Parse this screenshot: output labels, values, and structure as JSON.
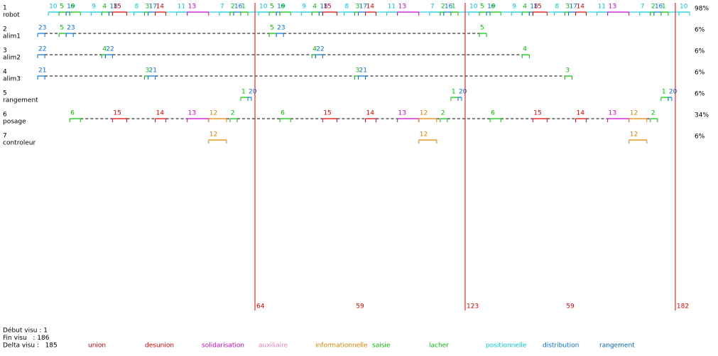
{
  "chart_data": {
    "type": "timeline",
    "xlim": [
      1,
      186
    ],
    "rows": [
      {
        "id": "1",
        "name": "robot",
        "percent": "98%",
        "connector": "solid",
        "connector_color": "#00c8d8",
        "segments": [
          {
            "label": "10",
            "color": "#00c8d8",
            "t": [
              6,
              9
            ]
          },
          {
            "label": "5",
            "color": "#00c000",
            "t": [
              9,
              11
            ]
          },
          {
            "label": "19",
            "color": "#0070e0",
            "t": [
              11,
              12
            ]
          },
          {
            "label": "6",
            "color": "#00c000",
            "t": [
              12,
              15
            ]
          },
          {
            "label": "9",
            "color": "#00c8d8",
            "t": [
              18,
              21
            ]
          },
          {
            "label": "4",
            "color": "#00c000",
            "t": [
              21,
              23
            ]
          },
          {
            "label": "18",
            "color": "#0070e0",
            "t": [
              23,
              24
            ]
          },
          {
            "label": "15",
            "color": "#e00000",
            "t": [
              24,
              28
            ]
          },
          {
            "label": "8",
            "color": "#00c8d8",
            "t": [
              30,
              33
            ]
          },
          {
            "label": "3",
            "color": "#00c000",
            "t": [
              33,
              34
            ]
          },
          {
            "label": "17",
            "color": "#0070e0",
            "t": [
              34,
              36
            ]
          },
          {
            "label": "14",
            "color": "#e00000",
            "t": [
              36,
              39
            ]
          },
          {
            "label": "11",
            "color": "#00c8d8",
            "t": [
              42,
              45
            ]
          },
          {
            "label": "13",
            "color": "#d000d0",
            "t": [
              45,
              51
            ]
          },
          {
            "label": "7",
            "color": "#00c8d8",
            "t": [
              54,
              57
            ]
          },
          {
            "label": "2",
            "color": "#00c000",
            "t": [
              57,
              58
            ]
          },
          {
            "label": "16",
            "color": "#0070e0",
            "t": [
              58,
              60
            ]
          },
          {
            "label": "1",
            "color": "#00c000",
            "t": [
              60,
              62
            ]
          },
          {
            "label": "10",
            "color": "#00c8d8",
            "t": [
              65,
              68
            ]
          },
          {
            "label": "5",
            "color": "#00c000",
            "t": [
              68,
              70
            ]
          },
          {
            "label": "19",
            "color": "#0070e0",
            "t": [
              70,
              71
            ]
          },
          {
            "label": "6",
            "color": "#00c000",
            "t": [
              71,
              74
            ]
          },
          {
            "label": "9",
            "color": "#00c8d8",
            "t": [
              77,
              80
            ]
          },
          {
            "label": "4",
            "color": "#00c000",
            "t": [
              80,
              82
            ]
          },
          {
            "label": "18",
            "color": "#0070e0",
            "t": [
              82,
              83
            ]
          },
          {
            "label": "15",
            "color": "#e00000",
            "t": [
              83,
              87
            ]
          },
          {
            "label": "8",
            "color": "#00c8d8",
            "t": [
              89,
              92
            ]
          },
          {
            "label": "3",
            "color": "#00c000",
            "t": [
              92,
              93
            ]
          },
          {
            "label": "17",
            "color": "#0070e0",
            "t": [
              93,
              95
            ]
          },
          {
            "label": "14",
            "color": "#e00000",
            "t": [
              95,
              98
            ]
          },
          {
            "label": "11",
            "color": "#00c8d8",
            "t": [
              101,
              104
            ]
          },
          {
            "label": "13",
            "color": "#d000d0",
            "t": [
              104,
              110
            ]
          },
          {
            "label": "7",
            "color": "#00c8d8",
            "t": [
              113,
              116
            ]
          },
          {
            "label": "2",
            "color": "#00c000",
            "t": [
              116,
              117
            ]
          },
          {
            "label": "16",
            "color": "#0070e0",
            "t": [
              117,
              119
            ]
          },
          {
            "label": "1",
            "color": "#00c000",
            "t": [
              119,
              121
            ]
          },
          {
            "label": "10",
            "color": "#00c8d8",
            "t": [
              124,
              127
            ]
          },
          {
            "label": "5",
            "color": "#00c000",
            "t": [
              127,
              129
            ]
          },
          {
            "label": "19",
            "color": "#0070e0",
            "t": [
              129,
              130
            ]
          },
          {
            "label": "6",
            "color": "#00c000",
            "t": [
              130,
              133
            ]
          },
          {
            "label": "9",
            "color": "#00c8d8",
            "t": [
              136,
              139
            ]
          },
          {
            "label": "4",
            "color": "#00c000",
            "t": [
              139,
              141
            ]
          },
          {
            "label": "18",
            "color": "#0070e0",
            "t": [
              141,
              142
            ]
          },
          {
            "label": "15",
            "color": "#e00000",
            "t": [
              142,
              146
            ]
          },
          {
            "label": "8",
            "color": "#00c8d8",
            "t": [
              148,
              151
            ]
          },
          {
            "label": "3",
            "color": "#00c000",
            "t": [
              151,
              152
            ]
          },
          {
            "label": "17",
            "color": "#0070e0",
            "t": [
              152,
              154
            ]
          },
          {
            "label": "14",
            "color": "#e00000",
            "t": [
              154,
              157
            ]
          },
          {
            "label": "11",
            "color": "#00c8d8",
            "t": [
              160,
              163
            ]
          },
          {
            "label": "13",
            "color": "#d000d0",
            "t": [
              163,
              169
            ]
          },
          {
            "label": "7",
            "color": "#00c8d8",
            "t": [
              172,
              175
            ]
          },
          {
            "label": "2",
            "color": "#00c000",
            "t": [
              175,
              176
            ]
          },
          {
            "label": "16",
            "color": "#0070e0",
            "t": [
              176,
              178
            ]
          },
          {
            "label": "1",
            "color": "#00c000",
            "t": [
              178,
              180
            ]
          },
          {
            "label": "10",
            "color": "#00c8d8",
            "t": [
              183,
              186
            ]
          }
        ]
      },
      {
        "id": "2",
        "name": "alim1",
        "percent": "6%",
        "connector": "dashed",
        "segments": [
          {
            "label": "23",
            "color": "#0070e0",
            "t": [
              3,
              5
            ]
          },
          {
            "label": "5",
            "color": "#00c000",
            "t": [
              9,
              11
            ]
          },
          {
            "label": "23",
            "color": "#0070e0",
            "t": [
              11,
              13
            ]
          },
          {
            "label": "5",
            "color": "#00c000",
            "t": [
              68,
              70
            ]
          },
          {
            "label": "23",
            "color": "#0070e0",
            "t": [
              70,
              72
            ]
          },
          {
            "label": "5",
            "color": "#00c000",
            "t": [
              127,
              129
            ]
          }
        ]
      },
      {
        "id": "3",
        "name": "alim2",
        "percent": "6%",
        "connector": "dashed",
        "segments": [
          {
            "label": "22",
            "color": "#0070e0",
            "t": [
              3,
              5
            ]
          },
          {
            "label": "4",
            "color": "#00c000",
            "t": [
              21,
              22
            ]
          },
          {
            "label": "22",
            "color": "#0070e0",
            "t": [
              22,
              24
            ]
          },
          {
            "label": "4",
            "color": "#00c000",
            "t": [
              80,
              81
            ]
          },
          {
            "label": "22",
            "color": "#0070e0",
            "t": [
              81,
              83
            ]
          },
          {
            "label": "4",
            "color": "#00c000",
            "t": [
              139,
              141
            ]
          }
        ]
      },
      {
        "id": "4",
        "name": "alim3",
        "percent": "6%",
        "connector": "dashed",
        "segments": [
          {
            "label": "21",
            "color": "#0070e0",
            "t": [
              3,
              5
            ]
          },
          {
            "label": "3",
            "color": "#00c000",
            "t": [
              33,
              34
            ]
          },
          {
            "label": "21",
            "color": "#0070e0",
            "t": [
              34,
              36
            ]
          },
          {
            "label": "3",
            "color": "#00c000",
            "t": [
              92,
              93
            ]
          },
          {
            "label": "21",
            "color": "#0070e0",
            "t": [
              93,
              95
            ]
          },
          {
            "label": "3",
            "color": "#00c000",
            "t": [
              151,
              153
            ]
          }
        ]
      },
      {
        "id": "5",
        "name": "rangement",
        "percent": "6%",
        "connector": "none",
        "segments": [
          {
            "label": "1",
            "color": "#00c000",
            "t": [
              60,
              62
            ]
          },
          {
            "label": "20",
            "color": "#0070e0",
            "t": [
              62,
              63
            ]
          },
          {
            "label": "1",
            "color": "#00c000",
            "t": [
              119,
              121
            ]
          },
          {
            "label": "20",
            "color": "#0070e0",
            "t": [
              121,
              122
            ]
          },
          {
            "label": "1",
            "color": "#00c000",
            "t": [
              178,
              180
            ]
          },
          {
            "label": "20",
            "color": "#0070e0",
            "t": [
              180,
              181
            ]
          }
        ]
      },
      {
        "id": "6",
        "name": "posage",
        "percent": "34%",
        "connector": "dashed",
        "segments": [
          {
            "label": "6",
            "color": "#00c000",
            "t": [
              12,
              15
            ]
          },
          {
            "label": "15",
            "color": "#e00000",
            "t": [
              24,
              28
            ]
          },
          {
            "label": "14",
            "color": "#e00000",
            "t": [
              36,
              39
            ]
          },
          {
            "label": "13",
            "color": "#d000d0",
            "t": [
              45,
              51
            ]
          },
          {
            "label": "12",
            "color": "#e08000",
            "t": [
              51,
              56
            ]
          },
          {
            "label": "2",
            "color": "#00c000",
            "t": [
              57,
              59
            ]
          },
          {
            "label": "6",
            "color": "#00c000",
            "t": [
              71,
              74
            ]
          },
          {
            "label": "15",
            "color": "#e00000",
            "t": [
              83,
              87
            ]
          },
          {
            "label": "14",
            "color": "#e00000",
            "t": [
              95,
              98
            ]
          },
          {
            "label": "13",
            "color": "#d000d0",
            "t": [
              104,
              110
            ]
          },
          {
            "label": "12",
            "color": "#e08000",
            "t": [
              110,
              115
            ]
          },
          {
            "label": "2",
            "color": "#00c000",
            "t": [
              116,
              118
            ]
          },
          {
            "label": "6",
            "color": "#00c000",
            "t": [
              130,
              133
            ]
          },
          {
            "label": "15",
            "color": "#e00000",
            "t": [
              142,
              146
            ]
          },
          {
            "label": "14",
            "color": "#e00000",
            "t": [
              154,
              157
            ]
          },
          {
            "label": "13",
            "color": "#d000d0",
            "t": [
              163,
              169
            ]
          },
          {
            "label": "12",
            "color": "#e08000",
            "t": [
              169,
              174
            ]
          },
          {
            "label": "2",
            "color": "#00c000",
            "t": [
              175,
              177
            ]
          }
        ]
      },
      {
        "id": "7",
        "name": "controleur",
        "percent": "6%",
        "connector": "none",
        "segments": [
          {
            "label": "12",
            "color": "#e08000",
            "t": [
              51,
              56
            ]
          },
          {
            "label": "12",
            "color": "#e08000",
            "t": [
              110,
              115
            ]
          },
          {
            "label": "12",
            "color": "#e08000",
            "t": [
              169,
              174
            ]
          }
        ]
      }
    ],
    "markers": [
      64,
      123,
      182
    ],
    "marker_color": "#e00000",
    "intervals": [
      59,
      59
    ],
    "footer": [
      "Début visu : 1",
      "Fin visu   : 186",
      "Delta visu :   185"
    ],
    "legend": [
      {
        "label": "union",
        "color": "#c00000"
      },
      {
        "label": "desunion",
        "color": "#e00000"
      },
      {
        "label": "solidarisation",
        "color": "#d000d0"
      },
      {
        "label": "auxiliaire",
        "color": "#f080c0"
      },
      {
        "label": "informationnelle",
        "color": "#e08000"
      },
      {
        "label": "saisie",
        "color": "#00c000"
      },
      {
        "label": "lacher",
        "color": "#00c000"
      },
      {
        "label": "positionnelle",
        "color": "#00c8d8"
      },
      {
        "label": "distribution",
        "color": "#0070e0"
      },
      {
        "label": "rangement",
        "color": "#0060c0"
      }
    ]
  }
}
